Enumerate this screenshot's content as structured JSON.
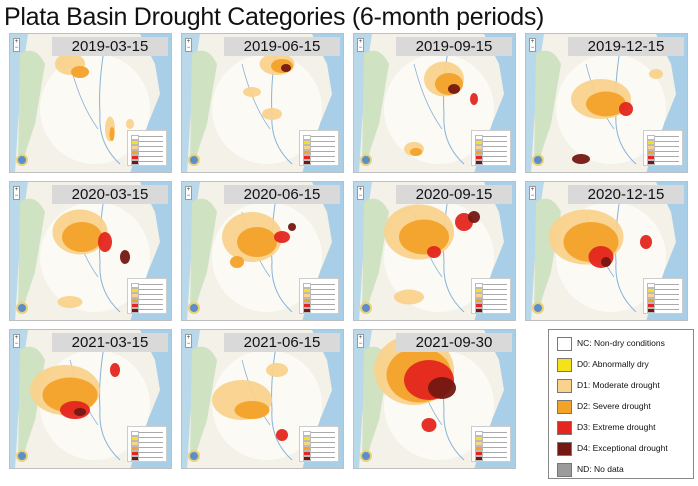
{
  "title": "Plata Basin Drought Categories (6-month periods)",
  "panels": [
    {
      "date": "2019-03-15"
    },
    {
      "date": "2019-06-15"
    },
    {
      "date": "2019-09-15"
    },
    {
      "date": "2019-12-15"
    },
    {
      "date": "2020-03-15"
    },
    {
      "date": "2020-06-15"
    },
    {
      "date": "2020-09-15"
    },
    {
      "date": "2020-12-15"
    },
    {
      "date": "2021-03-15"
    },
    {
      "date": "2021-06-15"
    },
    {
      "date": "2021-09-30"
    }
  ],
  "legend": {
    "items": [
      {
        "label": "NC: Non-dry conditions",
        "color": "#ffffff"
      },
      {
        "label": "D0: Abnormally dry",
        "color": "#f5e21b"
      },
      {
        "label": "D1: Moderate drought",
        "color": "#f9d28c"
      },
      {
        "label": "D2: Severe drought",
        "color": "#f3a22a"
      },
      {
        "label": "D3: Extreme drought",
        "color": "#e3261f"
      },
      {
        "label": "D4: Exceptional drought",
        "color": "#731812"
      },
      {
        "label": "ND: No data",
        "color": "#9b9b9b"
      }
    ]
  }
}
